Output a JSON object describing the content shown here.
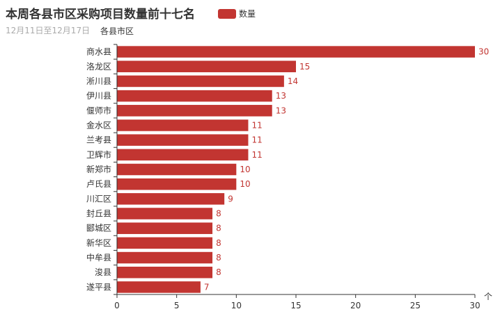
{
  "chart_data": {
    "type": "bar",
    "orientation": "horizontal",
    "title": "本周各县市区采购项目数量前十七名",
    "subtitle": "12月11日至12月17日",
    "ylabel": "各县市区",
    "xlabel": "",
    "legend": {
      "entries": [
        "数量"
      ],
      "placement": "top"
    },
    "categories": [
      "商水县",
      "洛龙区",
      "淅川县",
      "伊川县",
      "偃师市",
      "金水区",
      "兰考县",
      "卫辉市",
      "新郑市",
      "卢氏县",
      "川汇区",
      "封丘县",
      "郾城区",
      "新华区",
      "中牟县",
      "浚县",
      "遂平县"
    ],
    "series": [
      {
        "name": "数量",
        "color": "#c23531",
        "values": [
          30,
          15,
          14,
          13,
          13,
          11,
          11,
          11,
          10,
          10,
          9,
          8,
          8,
          8,
          8,
          8,
          7
        ]
      }
    ],
    "xlim": [
      0,
      30
    ],
    "xticks": [
      0,
      5,
      10,
      15,
      20,
      25,
      30
    ],
    "grid": false,
    "axis_name_arrow": "个"
  }
}
